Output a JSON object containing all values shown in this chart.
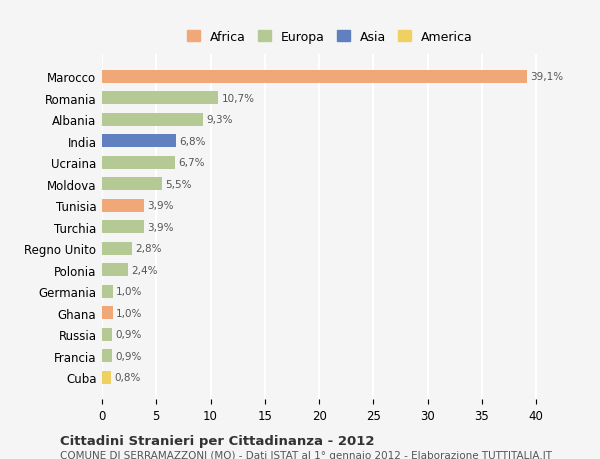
{
  "countries": [
    "Marocco",
    "Romania",
    "Albania",
    "India",
    "Ucraina",
    "Moldova",
    "Tunisia",
    "Turchia",
    "Regno Unito",
    "Polonia",
    "Germania",
    "Ghana",
    "Russia",
    "Francia",
    "Cuba"
  ],
  "values": [
    39.1,
    10.7,
    9.3,
    6.8,
    6.7,
    5.5,
    3.9,
    3.9,
    2.8,
    2.4,
    1.0,
    1.0,
    0.9,
    0.9,
    0.8
  ],
  "labels": [
    "39,1%",
    "10,7%",
    "9,3%",
    "6,8%",
    "6,7%",
    "5,5%",
    "3,9%",
    "3,9%",
    "2,8%",
    "2,4%",
    "1,0%",
    "1,0%",
    "0,9%",
    "0,9%",
    "0,8%"
  ],
  "continents": [
    "Africa",
    "Europa",
    "Europa",
    "Asia",
    "Europa",
    "Europa",
    "Africa",
    "Europa",
    "Europa",
    "Europa",
    "Europa",
    "Africa",
    "Europa",
    "Europa",
    "America"
  ],
  "colors": {
    "Africa": "#F0A878",
    "Europa": "#B5C994",
    "Asia": "#6080C0",
    "America": "#F0D060"
  },
  "legend_order": [
    "Africa",
    "Europa",
    "Asia",
    "America"
  ],
  "xlim": [
    0,
    42
  ],
  "xticks": [
    0,
    5,
    10,
    15,
    20,
    25,
    30,
    35,
    40
  ],
  "title": "Cittadini Stranieri per Cittadinanza - 2012",
  "subtitle": "COMUNE DI SERRAMAZZONI (MO) - Dati ISTAT al 1° gennaio 2012 - Elaborazione TUTTITALIA.IT",
  "background_color": "#f5f5f5",
  "grid_color": "#ffffff",
  "bar_height": 0.6
}
